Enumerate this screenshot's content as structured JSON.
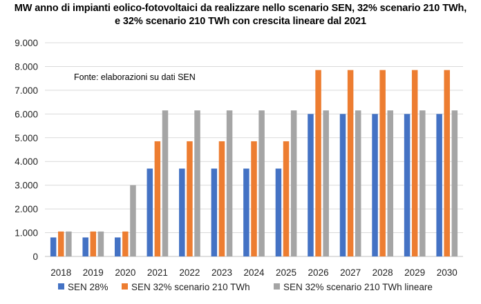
{
  "chart_data": {
    "type": "bar",
    "title": "MW anno di impianti eolico-fotovoltaici da realizzare nello scenario SEN, 32% scenario 210 TWh,",
    "subtitle": "e 32%  scenario 210 TWh con crescita lineare dal 2021",
    "annotation": "Fonte: elaborazioni su dati SEN",
    "categories": [
      "2018",
      "2019",
      "2020",
      "2021",
      "2022",
      "2023",
      "2024",
      "2025",
      "2026",
      "2027",
      "2028",
      "2029",
      "2030"
    ],
    "series": [
      {
        "name": "SEN 28%",
        "color": "#4472c4",
        "values": [
          800,
          800,
          800,
          3700,
          3700,
          3700,
          3700,
          3700,
          6000,
          6000,
          6000,
          6000,
          6000
        ]
      },
      {
        "name": "SEN 32% scenario 210 TWh",
        "color": "#ed7d31",
        "values": [
          1050,
          1050,
          1050,
          4850,
          4850,
          4850,
          4850,
          4850,
          7850,
          7850,
          7850,
          7850,
          7850
        ]
      },
      {
        "name": "SEN 32% scenario 210 TWh lineare",
        "color": "#a5a5a5",
        "values": [
          1050,
          1050,
          3000,
          6150,
          6150,
          6150,
          6150,
          6150,
          6150,
          6150,
          6150,
          6150,
          6150
        ]
      }
    ],
    "ylim": [
      0,
      9000
    ],
    "yticks": [
      0,
      1000,
      2000,
      3000,
      4000,
      5000,
      6000,
      7000,
      8000,
      9000
    ],
    "ytick_labels": [
      "0",
      "1.000",
      "2.000",
      "3.000",
      "4.000",
      "5.000",
      "6.000",
      "7.000",
      "8.000",
      "9.000"
    ],
    "xlabel": "",
    "ylabel": "",
    "grid": true,
    "gridline_color": "#d9d9d9",
    "legend_position": "bottom"
  }
}
